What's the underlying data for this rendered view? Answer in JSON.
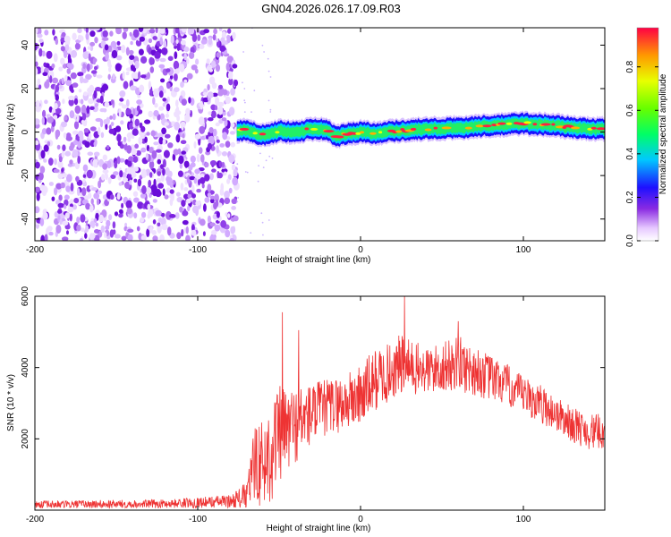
{
  "title": "GN04.2026.026.17.09.R03",
  "chart_data": [
    {
      "type": "heatmap",
      "xlabel": "Height of straight line (km)",
      "ylabel": "Frequency (Hz)",
      "xlim": [
        -200,
        150
      ],
      "ylim": [
        -50,
        48
      ],
      "xticks": [
        -200,
        -100,
        0,
        100
      ],
      "yticks": [
        -40,
        -20,
        0,
        20,
        40
      ],
      "noise_region_x": [
        -200,
        -76
      ],
      "signal_start_x": -76,
      "signal_track": {
        "x": [
          -76,
          -70,
          -60,
          -50,
          -40,
          -30,
          -20,
          -15,
          -10,
          0,
          10,
          20,
          30,
          40,
          50,
          60,
          70,
          80,
          90,
          100,
          110,
          120,
          130,
          140,
          150
        ],
        "freq": [
          0.5,
          1.0,
          -1.5,
          0.5,
          0.0,
          1.5,
          1.0,
          -2.5,
          -1.0,
          0.0,
          -0.5,
          0.5,
          1.0,
          1.5,
          1.5,
          2.0,
          2.5,
          3.0,
          3.5,
          4.0,
          3.5,
          3.0,
          2.0,
          1.5,
          1.5
        ]
      },
      "colorbar": {
        "label": "Normalized spectral amplitude",
        "ticks": [
          "0.0",
          "0.2",
          "0.4",
          "0.6",
          "0.8"
        ],
        "range": [
          0,
          0.98
        ]
      }
    },
    {
      "type": "line",
      "color": "#ee3333",
      "xlabel": "Height of straight line (km)",
      "ylabel": "SNR (10 * v/v)",
      "xlim": [
        -200,
        150
      ],
      "ylim": [
        0,
        6000
      ],
      "xticks": [
        -200,
        -100,
        0,
        100
      ],
      "yticks": [
        2000,
        4000,
        6000
      ],
      "envelope": {
        "x": [
          -200,
          -120,
          -80,
          -70,
          -64,
          -60,
          -55,
          -50,
          -40,
          -30,
          -20,
          -10,
          0,
          10,
          20,
          25,
          30,
          40,
          50,
          60,
          70,
          80,
          90,
          100,
          110,
          120,
          130,
          140,
          150
        ],
        "mean": [
          150,
          180,
          250,
          400,
          1500,
          1200,
          1700,
          2100,
          2400,
          2700,
          2900,
          3000,
          3200,
          3700,
          3900,
          4100,
          4000,
          3900,
          4000,
          4100,
          3900,
          3700,
          3500,
          3200,
          3000,
          2700,
          2400,
          2200,
          2200
        ],
        "amp": [
          120,
          120,
          180,
          400,
          1200,
          1300,
          1500,
          1400,
          1100,
          900,
          800,
          800,
          900,
          900,
          800,
          900,
          800,
          700,
          700,
          800,
          700,
          650,
          600,
          550,
          550,
          500,
          500,
          500,
          500
        ]
      },
      "peaks": [
        {
          "x": -48,
          "y": 5550
        },
        {
          "x": -38,
          "y": 5050
        },
        {
          "x": 27,
          "y": 6000
        },
        {
          "x": 60,
          "y": 5300
        }
      ]
    }
  ]
}
